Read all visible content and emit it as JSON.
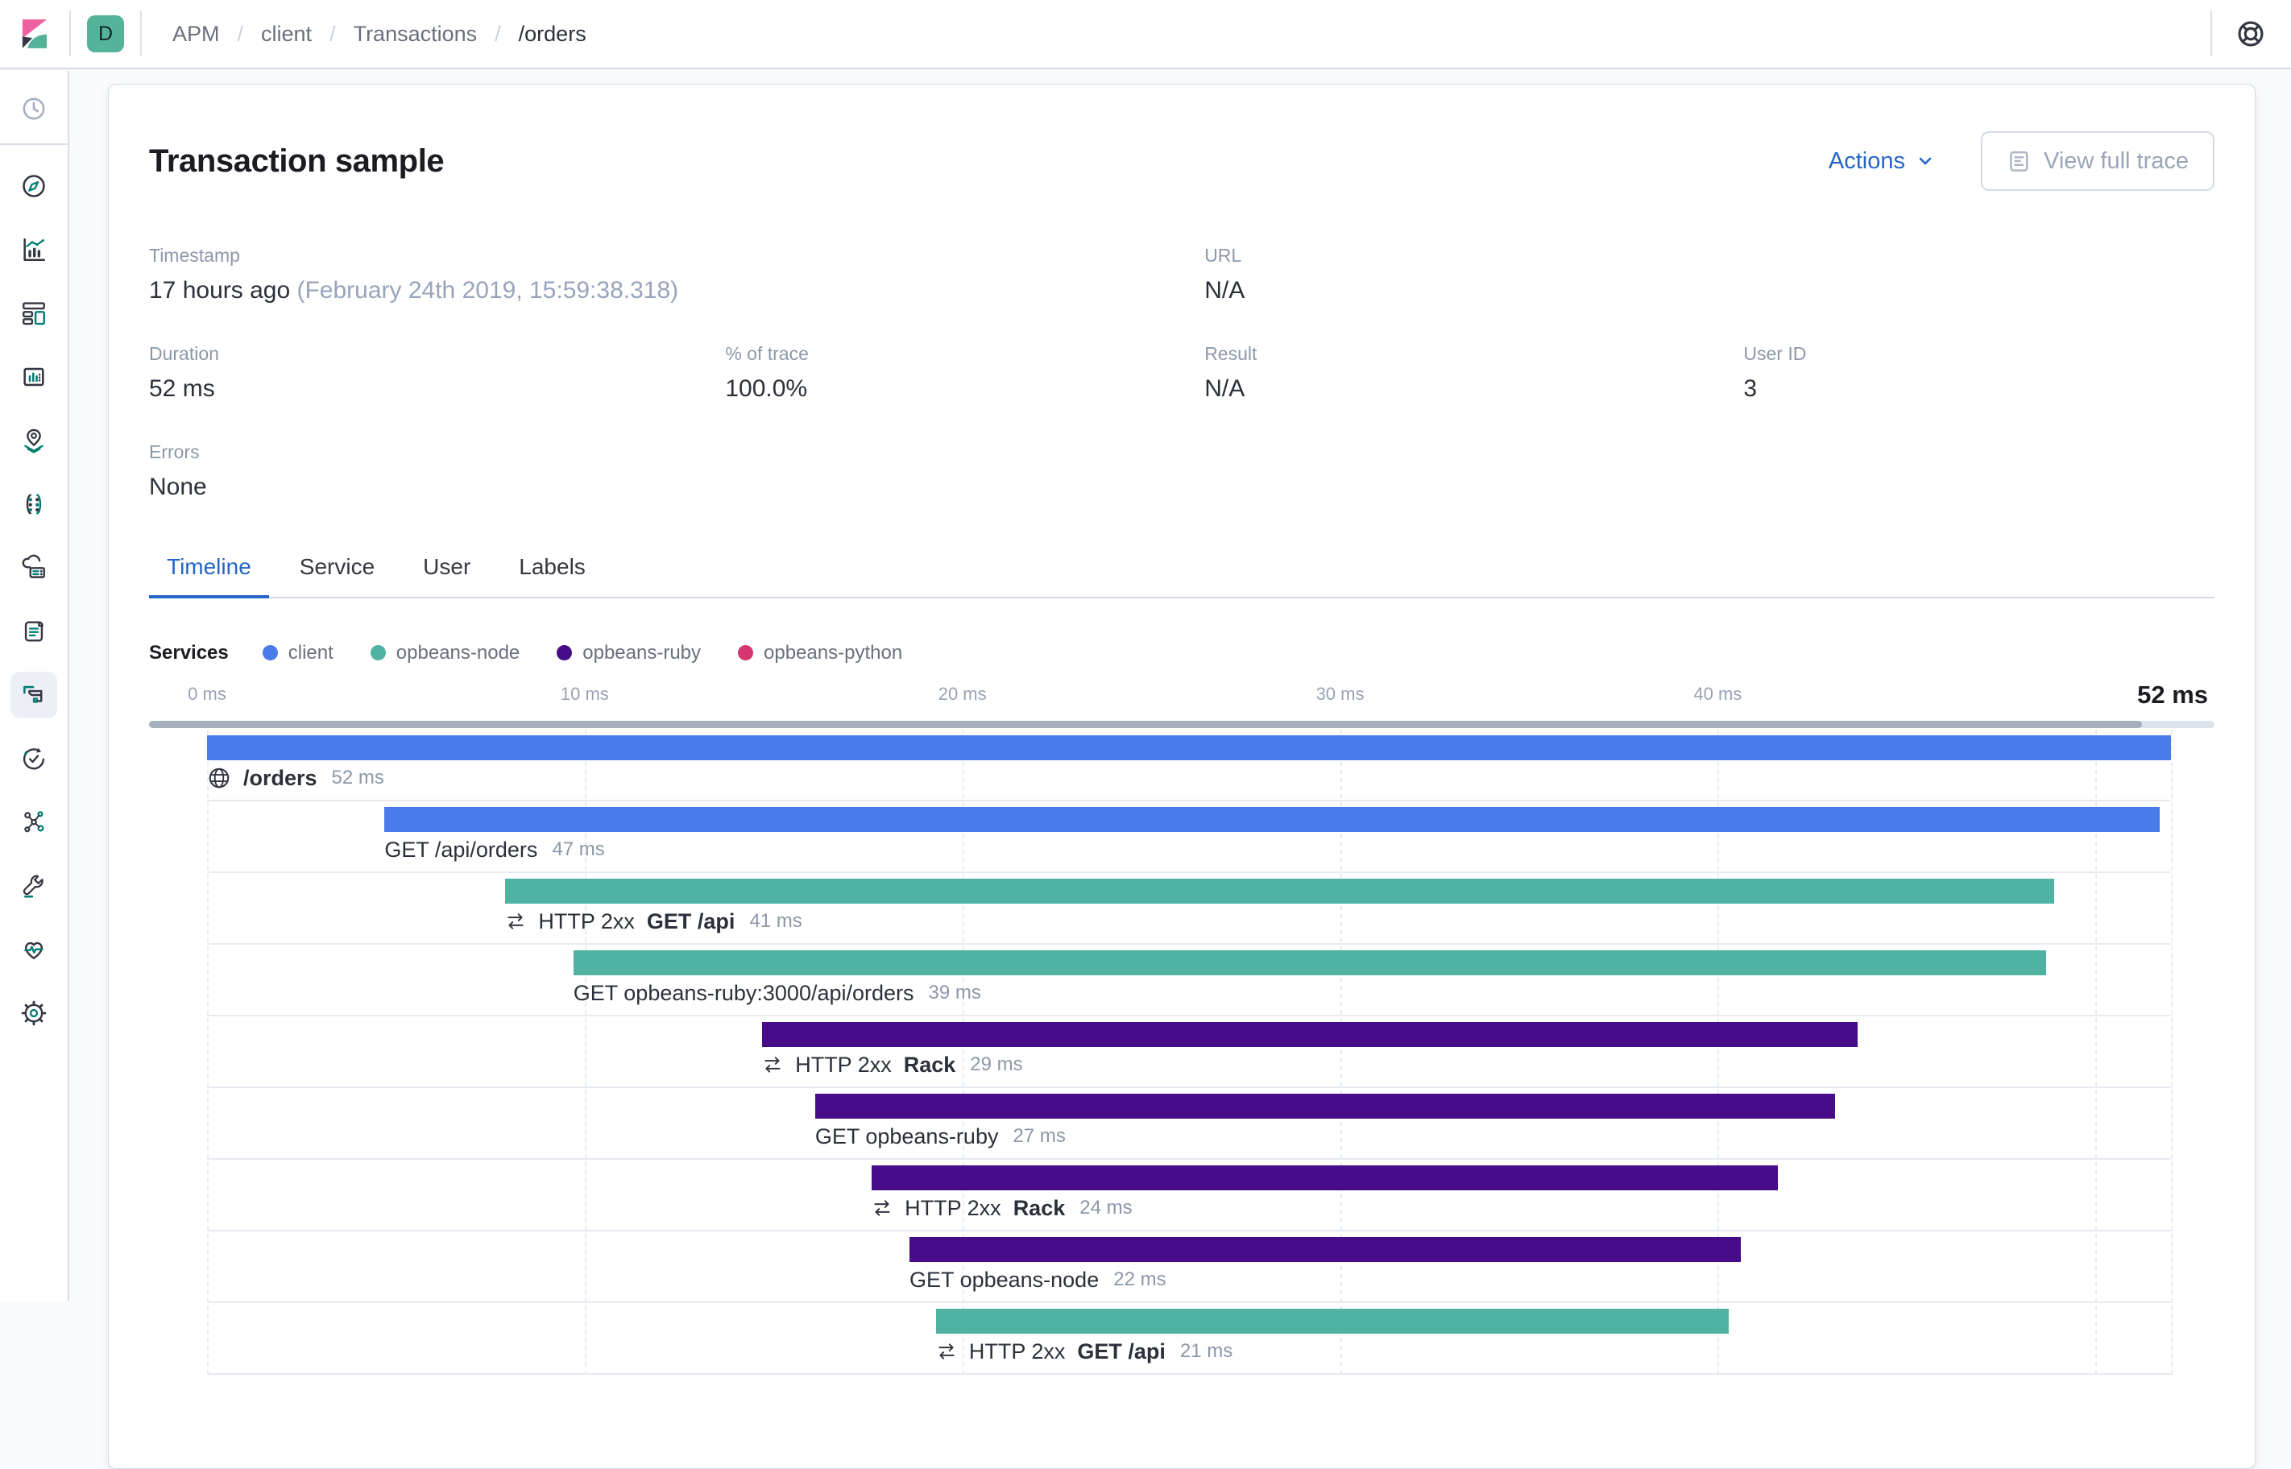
{
  "navbar": {
    "space_initial": "D",
    "breadcrumbs": [
      {
        "label": "APM",
        "current": false
      },
      {
        "label": "client",
        "current": false
      },
      {
        "label": "Transactions",
        "current": false
      },
      {
        "label": "/orders",
        "current": true
      }
    ]
  },
  "sidebar": {
    "items": [
      {
        "id": "recently-viewed",
        "icon": "clock",
        "selected": false
      },
      {
        "id": "discover",
        "icon": "discover",
        "selected": false
      },
      {
        "id": "visualize",
        "icon": "visualize",
        "selected": false
      },
      {
        "id": "dashboard",
        "icon": "dashboard",
        "selected": false
      },
      {
        "id": "canvas",
        "icon": "canvas",
        "selected": false
      },
      {
        "id": "maps",
        "icon": "maps",
        "selected": false
      },
      {
        "id": "machine-learning",
        "icon": "ml",
        "selected": false
      },
      {
        "id": "infrastructure",
        "icon": "infra",
        "selected": false
      },
      {
        "id": "logs",
        "icon": "logs",
        "selected": false
      },
      {
        "id": "apm",
        "icon": "apm",
        "selected": true
      },
      {
        "id": "uptime",
        "icon": "uptime",
        "selected": false
      },
      {
        "id": "graph",
        "icon": "graph",
        "selected": false
      },
      {
        "id": "dev-tools",
        "icon": "devtools",
        "selected": false
      },
      {
        "id": "stack-monitoring",
        "icon": "monitoring",
        "selected": false
      },
      {
        "id": "management",
        "icon": "management",
        "selected": false
      }
    ]
  },
  "header": {
    "title": "Transaction sample",
    "actions_label": "Actions",
    "view_full_trace_label": "View full trace"
  },
  "metadata": {
    "timestamp": {
      "label": "Timestamp",
      "relative": "17 hours ago",
      "absolute": "(February 24th 2019, 15:59:38.318)"
    },
    "url": {
      "label": "URL",
      "value": "N/A"
    },
    "duration": {
      "label": "Duration",
      "value": "52 ms"
    },
    "percent_of_trace": {
      "label": "% of trace",
      "value": "100.0%"
    },
    "result": {
      "label": "Result",
      "value": "N/A"
    },
    "user_id": {
      "label": "User ID",
      "value": "3"
    },
    "errors": {
      "label": "Errors",
      "value": "None"
    }
  },
  "tabs": [
    {
      "label": "Timeline",
      "active": true
    },
    {
      "label": "Service",
      "active": false
    },
    {
      "label": "User",
      "active": false
    },
    {
      "label": "Labels",
      "active": false
    }
  ],
  "legend": {
    "title": "Services",
    "items": [
      {
        "label": "client",
        "color": "#4A7CE9"
      },
      {
        "label": "opbeans-node",
        "color": "#4FB2A3"
      },
      {
        "label": "opbeans-ruby",
        "color": "#470C87"
      },
      {
        "label": "opbeans-python",
        "color": "#D6356F"
      }
    ]
  },
  "chart_data": {
    "type": "waterfall-timeline",
    "total_ms": 52,
    "total_label": "52 ms",
    "axis_ticks": [
      {
        "ms": 0,
        "label": "0 ms"
      },
      {
        "ms": 10,
        "label": "10 ms"
      },
      {
        "ms": 20,
        "label": "20 ms"
      },
      {
        "ms": 30,
        "label": "30 ms"
      },
      {
        "ms": 40,
        "label": "40 ms"
      }
    ],
    "gridlines_ms": [
      0,
      10,
      20,
      30,
      40,
      50,
      52
    ],
    "rows": [
      {
        "icon": "globe",
        "prefix": "",
        "name": "/orders",
        "bold_name": true,
        "duration_label": "52 ms",
        "service": "client",
        "start_ms": 0,
        "duration_ms": 52
      },
      {
        "icon": "",
        "prefix": "",
        "name": "GET /api/orders",
        "bold_name": false,
        "duration_label": "47 ms",
        "service": "client",
        "start_ms": 4.7,
        "duration_ms": 47
      },
      {
        "icon": "merge",
        "prefix": "HTTP 2xx",
        "name": "GET /api",
        "bold_name": true,
        "duration_label": "41 ms",
        "service": "opbeans-node",
        "start_ms": 7.9,
        "duration_ms": 41
      },
      {
        "icon": "",
        "prefix": "",
        "name": "GET opbeans-ruby:3000/api/orders",
        "bold_name": false,
        "duration_label": "39 ms",
        "service": "opbeans-node",
        "start_ms": 9.7,
        "duration_ms": 39
      },
      {
        "icon": "merge",
        "prefix": "HTTP 2xx",
        "name": "Rack",
        "bold_name": true,
        "duration_label": "29 ms",
        "service": "opbeans-ruby",
        "start_ms": 14.7,
        "duration_ms": 29
      },
      {
        "icon": "",
        "prefix": "",
        "name": "GET opbeans-ruby",
        "bold_name": false,
        "duration_label": "27 ms",
        "service": "opbeans-ruby",
        "start_ms": 16.1,
        "duration_ms": 27
      },
      {
        "icon": "merge",
        "prefix": "HTTP 2xx",
        "name": "Rack",
        "bold_name": true,
        "duration_label": "24 ms",
        "service": "opbeans-ruby",
        "start_ms": 17.6,
        "duration_ms": 24
      },
      {
        "icon": "",
        "prefix": "",
        "name": "GET opbeans-node",
        "bold_name": false,
        "duration_label": "22 ms",
        "service": "opbeans-ruby",
        "start_ms": 18.6,
        "duration_ms": 22
      },
      {
        "icon": "merge",
        "prefix": "HTTP 2xx",
        "name": "GET /api",
        "bold_name": true,
        "duration_label": "21 ms",
        "service": "opbeans-node",
        "start_ms": 19.3,
        "duration_ms": 21
      }
    ]
  },
  "colors": {
    "client": "#4A7CE9",
    "opbeans-node": "#4FB2A3",
    "opbeans-ruby": "#470C87",
    "opbeans-python": "#D6356F",
    "accent_blue": "#2565C7"
  }
}
